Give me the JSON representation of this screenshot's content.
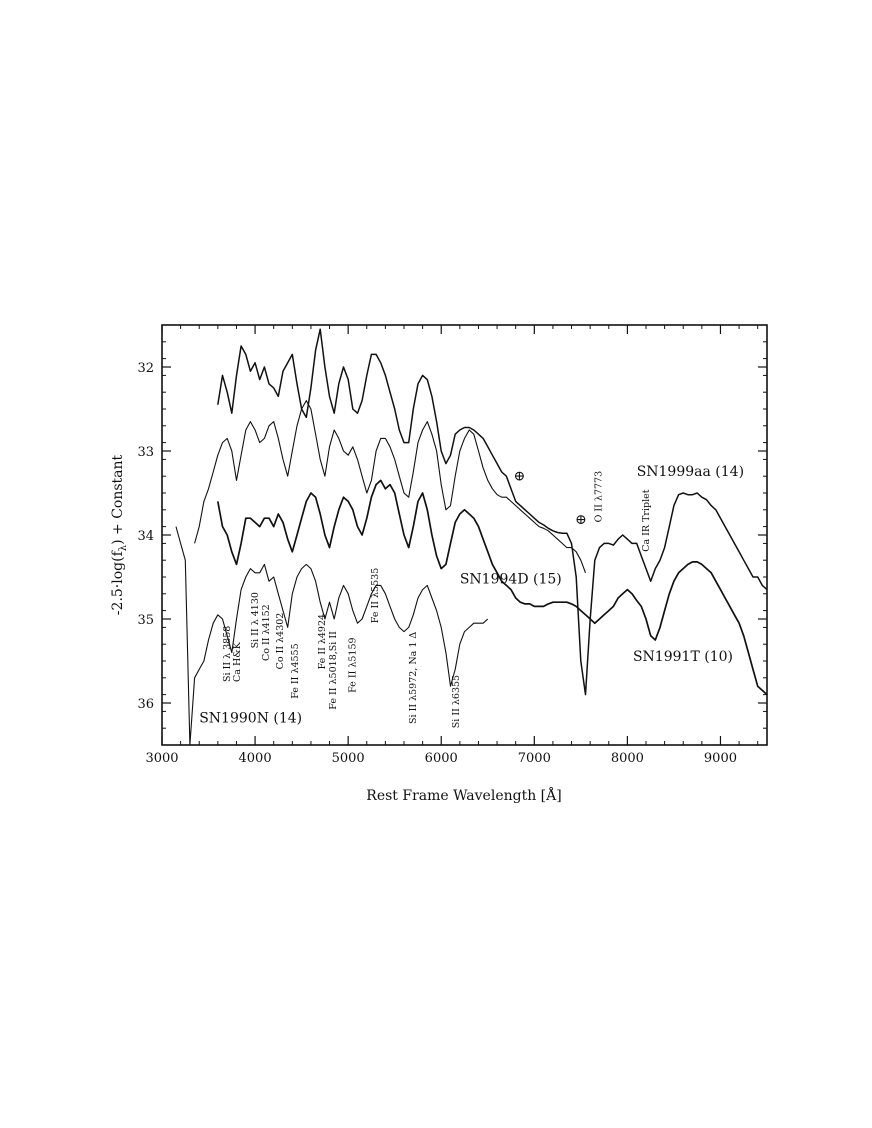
{
  "chart_data": {
    "type": "line",
    "xlabel": "Rest Frame Wavelength [Å]",
    "ylabel": "-2.5·log(f",
    "ylabel_sub": "λ",
    "ylabel_rest": ") + Constant",
    "xlim": [
      3000,
      9500
    ],
    "ylim": [
      36.5,
      31.5
    ],
    "y_inverted": true,
    "grid": false,
    "x_ticks": [
      3000,
      4000,
      5000,
      6000,
      7000,
      8000,
      9000
    ],
    "x_tick_labels": [
      "3000",
      "4000",
      "5000",
      "6000",
      "7000",
      "8000",
      "9000"
    ],
    "y_ticks": [
      32,
      33,
      34,
      35,
      36
    ],
    "y_tick_labels": [
      "32",
      "33",
      "34",
      "35",
      "36"
    ],
    "series": [
      {
        "name": "SN1999aa (14)",
        "x": [
          3600,
          3650,
          3700,
          3750,
          3800,
          3850,
          3900,
          3950,
          4000,
          4050,
          4100,
          4150,
          4200,
          4250,
          4300,
          4350,
          4400,
          4450,
          4500,
          4550,
          4600,
          4650,
          4700,
          4750,
          4800,
          4850,
          4900,
          4950,
          5000,
          5050,
          5100,
          5150,
          5200,
          5250,
          5300,
          5350,
          5400,
          5450,
          5500,
          5550,
          5600,
          5650,
          5700,
          5750,
          5800,
          5850,
          5900,
          5950,
          6000,
          6050,
          6100,
          6150,
          6200,
          6250,
          6300,
          6350,
          6400,
          6450,
          6500,
          6550,
          6600,
          6650,
          6700,
          6750,
          6800,
          6850,
          6900,
          6950,
          7000,
          7050,
          7100,
          7150,
          7200,
          7250,
          7300,
          7350,
          7400,
          7450,
          7500,
          7550,
          7600,
          7650,
          7700,
          7750,
          7800,
          7850,
          7900,
          7950,
          8000,
          8050,
          8100,
          8150,
          8200,
          8250,
          8300,
          8350,
          8400,
          8450,
          8500,
          8550,
          8600,
          8650,
          8700,
          8750,
          8800,
          8850,
          8900,
          8950,
          9000,
          9050,
          9100,
          9150,
          9200,
          9250,
          9300,
          9350,
          9400,
          9450,
          9500
        ],
        "y": [
          32.45,
          32.1,
          32.3,
          32.55,
          32.1,
          31.75,
          31.85,
          32.05,
          31.95,
          32.15,
          32.0,
          32.2,
          32.25,
          32.35,
          32.05,
          31.95,
          31.85,
          32.2,
          32.5,
          32.6,
          32.25,
          31.8,
          31.55,
          32.0,
          32.35,
          32.55,
          32.2,
          32.0,
          32.15,
          32.5,
          32.55,
          32.4,
          32.1,
          31.85,
          31.85,
          31.95,
          32.1,
          32.3,
          32.5,
          32.75,
          32.9,
          32.9,
          32.5,
          32.2,
          32.1,
          32.15,
          32.35,
          32.65,
          33.0,
          33.15,
          33.05,
          32.8,
          32.75,
          32.72,
          32.72,
          32.75,
          32.8,
          32.85,
          32.95,
          33.05,
          33.15,
          33.25,
          33.3,
          33.45,
          33.6,
          33.65,
          33.7,
          33.75,
          33.8,
          33.85,
          33.88,
          33.92,
          33.95,
          33.97,
          33.98,
          33.98,
          34.1,
          34.5,
          35.5,
          35.9,
          35.0,
          34.3,
          34.15,
          34.1,
          34.1,
          34.12,
          34.05,
          34.0,
          34.05,
          34.1,
          34.1,
          34.25,
          34.4,
          34.55,
          34.4,
          34.3,
          34.15,
          33.9,
          33.65,
          33.52,
          33.5,
          33.52,
          33.52,
          33.5,
          33.55,
          33.58,
          33.65,
          33.7,
          33.8,
          33.9,
          34.0,
          34.1,
          34.2,
          34.3,
          34.4,
          34.5,
          34.5,
          34.6,
          34.65
        ]
      },
      {
        "name": "SN1994D (15)",
        "x": [
          3350,
          3400,
          3450,
          3500,
          3550,
          3600,
          3650,
          3700,
          3750,
          3800,
          3850,
          3900,
          3950,
          4000,
          4050,
          4100,
          4150,
          4200,
          4250,
          4300,
          4350,
          4400,
          4450,
          4500,
          4550,
          4600,
          4650,
          4700,
          4750,
          4800,
          4850,
          4900,
          4950,
          5000,
          5050,
          5100,
          5150,
          5200,
          5250,
          5300,
          5350,
          5400,
          5450,
          5500,
          5550,
          5600,
          5650,
          5700,
          5750,
          5800,
          5850,
          5900,
          5950,
          6000,
          6050,
          6100,
          6150,
          6200,
          6250,
          6300,
          6350,
          6400,
          6450,
          6500,
          6550,
          6600,
          6650,
          6700,
          6750,
          6800,
          6850,
          6900,
          6950,
          7000,
          7050,
          7100,
          7150,
          7200,
          7250,
          7300,
          7350,
          7400,
          7450,
          7500,
          7550
        ],
        "y": [
          34.1,
          33.9,
          33.6,
          33.45,
          33.25,
          33.05,
          32.9,
          32.85,
          33.0,
          33.35,
          33.05,
          32.75,
          32.65,
          32.75,
          32.9,
          32.85,
          32.7,
          32.65,
          32.85,
          33.1,
          33.3,
          33.0,
          32.7,
          32.5,
          32.4,
          32.5,
          32.8,
          33.1,
          33.3,
          32.95,
          32.75,
          32.85,
          33.0,
          33.05,
          32.95,
          33.1,
          33.3,
          33.5,
          33.35,
          33.0,
          32.85,
          32.85,
          32.95,
          33.1,
          33.3,
          33.5,
          33.55,
          33.25,
          32.9,
          32.75,
          32.65,
          32.8,
          33.0,
          33.4,
          33.7,
          33.65,
          33.3,
          33.0,
          32.85,
          32.75,
          32.8,
          33.0,
          33.2,
          33.35,
          33.45,
          33.52,
          33.55,
          33.55,
          33.6,
          33.65,
          33.7,
          33.75,
          33.8,
          33.85,
          33.9,
          33.92,
          33.95,
          34.0,
          34.05,
          34.1,
          34.15,
          34.15,
          34.2,
          34.3,
          34.45
        ]
      },
      {
        "name": "SN1991T (10)",
        "x": [
          3600,
          3650,
          3700,
          3750,
          3800,
          3850,
          3900,
          3950,
          4000,
          4050,
          4100,
          4150,
          4200,
          4250,
          4300,
          4350,
          4400,
          4450,
          4500,
          4550,
          4600,
          4650,
          4700,
          4750,
          4800,
          4850,
          4900,
          4950,
          5000,
          5050,
          5100,
          5150,
          5200,
          5250,
          5300,
          5350,
          5400,
          5450,
          5500,
          5550,
          5600,
          5650,
          5700,
          5750,
          5800,
          5850,
          5900,
          5950,
          6000,
          6050,
          6100,
          6150,
          6200,
          6250,
          6300,
          6350,
          6400,
          6450,
          6500,
          6550,
          6600,
          6650,
          6700,
          6750,
          6800,
          6850,
          6900,
          6950,
          7000,
          7050,
          7100,
          7150,
          7200,
          7250,
          7300,
          7350,
          7400,
          7450,
          7500,
          7550,
          7600,
          7650,
          7700,
          7750,
          7800,
          7850,
          7900,
          7950,
          8000,
          8050,
          8100,
          8150,
          8200,
          8250,
          8300,
          8350,
          8400,
          8450,
          8500,
          8550,
          8600,
          8650,
          8700,
          8750,
          8800,
          8850,
          8900,
          8950,
          9000,
          9050,
          9100,
          9150,
          9200,
          9250,
          9300,
          9350,
          9400,
          9450,
          9500
        ],
        "y": [
          33.6,
          33.9,
          34.0,
          34.2,
          34.35,
          34.1,
          33.8,
          33.8,
          33.85,
          33.9,
          33.8,
          33.8,
          33.9,
          33.75,
          33.85,
          34.05,
          34.2,
          34.0,
          33.8,
          33.6,
          33.5,
          33.55,
          33.75,
          34.0,
          34.15,
          33.9,
          33.7,
          33.55,
          33.6,
          33.7,
          33.9,
          34.0,
          33.8,
          33.55,
          33.4,
          33.35,
          33.45,
          33.4,
          33.5,
          33.75,
          34.0,
          34.15,
          33.9,
          33.6,
          33.5,
          33.7,
          34.0,
          34.25,
          34.4,
          34.35,
          34.1,
          33.85,
          33.75,
          33.7,
          33.75,
          33.8,
          33.9,
          34.05,
          34.2,
          34.35,
          34.45,
          34.55,
          34.6,
          34.65,
          34.75,
          34.8,
          34.82,
          34.82,
          34.85,
          34.85,
          34.85,
          34.82,
          34.8,
          34.8,
          34.8,
          34.8,
          34.82,
          34.85,
          34.9,
          34.95,
          35.0,
          35.05,
          35.0,
          34.95,
          34.9,
          34.85,
          34.75,
          34.7,
          34.65,
          34.7,
          34.78,
          34.85,
          35.0,
          35.2,
          35.25,
          35.1,
          34.9,
          34.7,
          34.55,
          34.45,
          34.4,
          34.35,
          34.32,
          34.32,
          34.35,
          34.4,
          34.45,
          34.55,
          34.65,
          34.75,
          34.85,
          34.95,
          35.05,
          35.2,
          35.4,
          35.6,
          35.8,
          35.85,
          35.9
        ]
      },
      {
        "name": "SN1990N (14)",
        "x": [
          3150,
          3200,
          3250,
          3300,
          3350,
          3400,
          3450,
          3500,
          3550,
          3600,
          3650,
          3700,
          3750,
          3800,
          3850,
          3900,
          3950,
          4000,
          4050,
          4100,
          4150,
          4200,
          4250,
          4300,
          4350,
          4400,
          4450,
          4500,
          4550,
          4600,
          4650,
          4700,
          4750,
          4800,
          4850,
          4900,
          4950,
          5000,
          5050,
          5100,
          5150,
          5200,
          5250,
          5300,
          5350,
          5400,
          5450,
          5500,
          5550,
          5600,
          5650,
          5700,
          5750,
          5800,
          5850,
          5900,
          5950,
          6000,
          6050,
          6100,
          6150,
          6200,
          6250,
          6300,
          6350,
          6400,
          6450,
          6500
        ],
        "y": [
          33.9,
          34.1,
          34.3,
          36.5,
          35.7,
          35.6,
          35.5,
          35.25,
          35.05,
          34.95,
          35.0,
          35.2,
          35.4,
          35.0,
          34.65,
          34.5,
          34.4,
          34.45,
          34.45,
          34.35,
          34.55,
          34.5,
          34.7,
          34.9,
          35.1,
          34.7,
          34.5,
          34.4,
          34.35,
          34.4,
          34.55,
          34.8,
          35.0,
          34.8,
          35.0,
          34.75,
          34.6,
          34.7,
          34.9,
          35.05,
          35.0,
          34.85,
          34.7,
          34.6,
          34.6,
          34.7,
          34.85,
          35.0,
          35.1,
          35.15,
          35.1,
          34.95,
          34.75,
          34.65,
          34.6,
          34.75,
          34.9,
          35.1,
          35.4,
          35.8,
          35.6,
          35.3,
          35.15,
          35.1,
          35.05,
          35.05,
          35.05,
          35.0
        ]
      }
    ],
    "series_labels": [
      {
        "text": "SN1999aa (14)",
        "x": 8100,
        "y": 33.3
      },
      {
        "text": "SN1994D (15)",
        "x": 6200,
        "y": 34.58
      },
      {
        "text": "SN1991T (10)",
        "x": 8060,
        "y": 35.5
      },
      {
        "text": "SN1990N (14)",
        "x": 3400,
        "y": 36.23
      }
    ],
    "telluric_marks": [
      {
        "text": "⊕",
        "x": 6840,
        "y": 33.35
      },
      {
        "text": "⊕",
        "x": 7500,
        "y": 33.87
      }
    ],
    "annotations": [
      {
        "text": "Si II λ 3858",
        "x": 3730,
        "y": 35.75
      },
      {
        "text": "Ca H&K",
        "x": 3840,
        "y": 35.75
      },
      {
        "text": "Si II λ 4130",
        "x": 4030,
        "y": 35.35
      },
      {
        "text": "Co II λ4152",
        "x": 4150,
        "y": 35.5
      },
      {
        "text": "Co II λ4302",
        "x": 4300,
        "y": 35.6
      },
      {
        "text": "Fe II λ4555",
        "x": 4460,
        "y": 35.95
      },
      {
        "text": "Fe II λ4924",
        "x": 4750,
        "y": 35.6
      },
      {
        "text": "Fe II λ5018,Si II",
        "x": 4870,
        "y": 36.08
      },
      {
        "text": "Fe II λ5159",
        "x": 5080,
        "y": 35.88
      },
      {
        "text": "Fe II λ5535",
        "x": 5320,
        "y": 35.05
      },
      {
        "text": "Si II λ5972, Na 1 Δ",
        "x": 5730,
        "y": 36.25
      },
      {
        "text": "Si II λ6355",
        "x": 6190,
        "y": 36.3
      },
      {
        "text": "O II λ7773",
        "x": 7720,
        "y": 33.85
      },
      {
        "text": "Ca IR Triplet",
        "x": 8230,
        "y": 34.2
      }
    ]
  }
}
